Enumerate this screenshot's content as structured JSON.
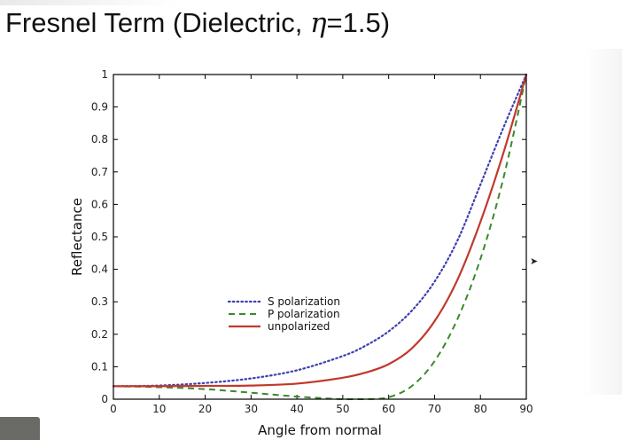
{
  "slide": {
    "title_prefix": "Fresnel Term (Dielectric, ",
    "title_symbol": "η",
    "title_suffix": "=1.5)"
  },
  "chart_data": {
    "type": "line",
    "title": "Fresnel Term (Dielectric, η=1.5)",
    "xlabel": "Angle from normal",
    "ylabel": "Reflectance",
    "xlim": [
      0,
      90
    ],
    "ylim": [
      0,
      1
    ],
    "x_ticks": [
      0,
      10,
      20,
      30,
      40,
      50,
      60,
      70,
      80,
      90
    ],
    "y_ticks": [
      "0",
      "0.1",
      "0.2",
      "0.3",
      "0.4",
      "0.5",
      "0.6",
      "0.7",
      "0.8",
      "0.9",
      "1"
    ],
    "legend_position": "center-left",
    "x": [
      0,
      10,
      20,
      30,
      40,
      50,
      55,
      60,
      65,
      70,
      75,
      80,
      85,
      90
    ],
    "series": [
      {
        "name": "S polarization",
        "style": "dotted",
        "color": "#3f3fb0",
        "values": [
          0.04,
          0.042,
          0.05,
          0.064,
          0.089,
          0.133,
          0.165,
          0.209,
          0.272,
          0.362,
          0.489,
          0.661,
          0.836,
          1.0
        ]
      },
      {
        "name": "P polarization",
        "style": "dashed",
        "color": "#3a8a2a",
        "values": [
          0.04,
          0.037,
          0.031,
          0.02,
          0.008,
          0.0,
          0.0,
          0.006,
          0.04,
          0.117,
          0.247,
          0.432,
          0.68,
          1.0
        ]
      },
      {
        "name": "unpolarized",
        "style": "solid",
        "color": "#c0392b",
        "values": [
          0.04,
          0.04,
          0.041,
          0.042,
          0.048,
          0.066,
          0.082,
          0.108,
          0.156,
          0.24,
          0.368,
          0.546,
          0.758,
          1.0
        ]
      }
    ]
  }
}
